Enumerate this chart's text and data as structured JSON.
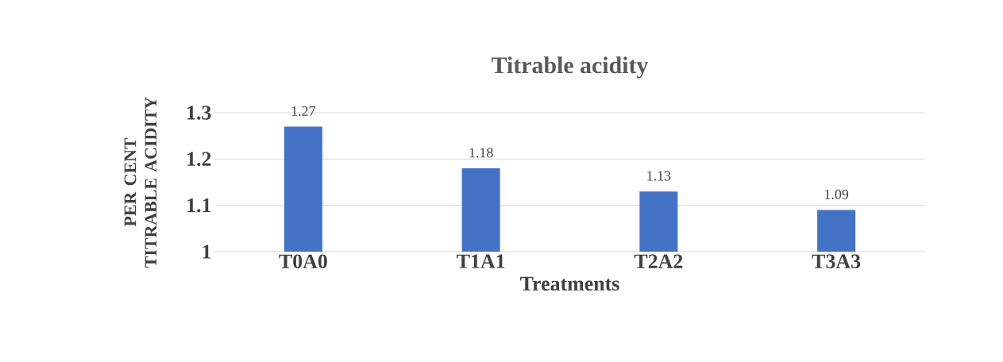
{
  "chart_data": {
    "type": "bar",
    "title": "Titrable acidity",
    "xlabel": "Treatments",
    "ylabel": "PER CENT TITRABLE ACIDITY",
    "categories": [
      "T0A0",
      "T1A1",
      "T2A2",
      "T3A3"
    ],
    "values": [
      1.27,
      1.18,
      1.13,
      1.09
    ],
    "color": "#4472c4",
    "ylim": [
      1,
      1.3
    ],
    "yticks": [
      1,
      1.1,
      1.2,
      1.3
    ],
    "grid": "y",
    "data_labels": true
  }
}
